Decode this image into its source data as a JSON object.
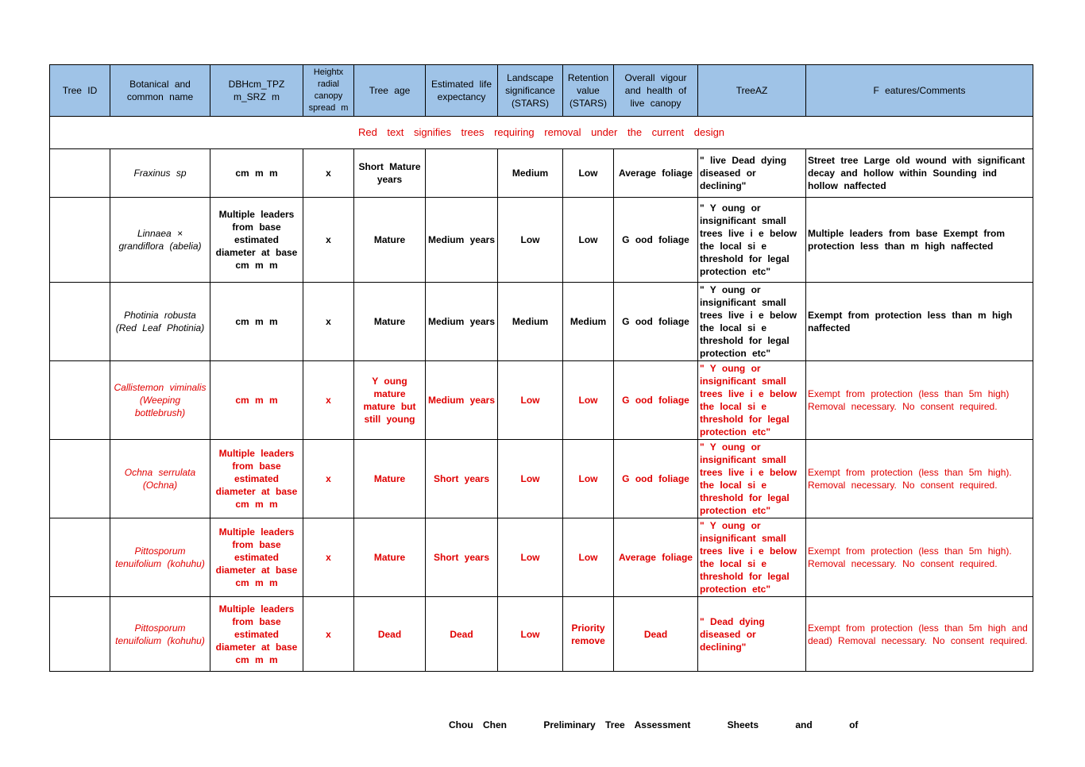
{
  "headers": {
    "id": "Tree ID",
    "botanical": "Botanical and common name",
    "dbh": "DBHcm_TPZ m_SRZ m",
    "height": "Heightx radial canopy spread m",
    "age": "Tree age",
    "life": "Estimated life expectancy",
    "landscape": "Landscape significance (STARS)",
    "retention": "Retention value (STARS)",
    "vigour": "Overall vigour and health of live canopy",
    "treeaz": "TreeAZ",
    "features": "F eatures/Comments"
  },
  "banner": "Red text signifies trees requiring removal under the current design",
  "rows": [
    {
      "id": "",
      "name": "Fraxinus sp",
      "dbh": "cm m m",
      "height": "x",
      "age": "Short Mature years",
      "life": "",
      "landscape": "Medium",
      "retention": "Low",
      "vigour": "Average foliage",
      "treeaz": "\" live Dead dying diseased or declining\"",
      "features": "Street tree Large old wound with significant decay and hollow within Sounding ind hollow naffected"
    },
    {
      "id": "",
      "name": "Linnaea × grandiflora (abelia)",
      "dbh": "Multiple leaders from base estimated diameter at base cm m m",
      "height": "x",
      "age": "Mature",
      "life": "Medium years",
      "landscape": "Low",
      "retention": "Low",
      "vigour": "G ood foliage",
      "treeaz": "\" Y oung or insignificant small trees live i e below the local si e threshold for legal protection etc\"",
      "features": "Multiple leaders from base Exempt from protection less than m high naffected"
    },
    {
      "id": "",
      "name": "Photinia robusta (Red Leaf Photinia)",
      "dbh": "cm m m",
      "height": "x",
      "age": "Mature",
      "life": "Medium years",
      "landscape": "Medium",
      "retention": "Medium",
      "vigour": "G ood foliage",
      "treeaz": "\" Y oung or insignificant small trees live i e below the local si e threshold for legal protection etc\"",
      "features": "Exempt from protection less than m high naffected"
    },
    {
      "id": "",
      "name": "Callistemon viminalis (Weeping bottlebrush)",
      "dbh": "cm m m",
      "height": "x",
      "age": "Y oung mature mature but still young",
      "life": "Medium years",
      "landscape": "Low",
      "retention": "Low",
      "vigour": "G ood foliage",
      "treeaz": "\" Y oung or insignificant small trees live i e below the local si e threshold for legal protection etc\"",
      "features": "Exempt from protection (less than 5m high) Removal necessary. No consent required."
    },
    {
      "id": "",
      "name": "Ochna serrulata (Ochna)",
      "dbh": "Multiple leaders from base estimated diameter at base cm m m",
      "height": "x",
      "age": "Mature",
      "life": "Short years",
      "landscape": "Low",
      "retention": "Low",
      "vigour": "G ood foliage",
      "treeaz": "\" Y oung or insignificant small trees live i e below the local si e threshold for legal protection etc\"",
      "features": "Exempt from protection (less than 5m high). Removal necessary. No consent required."
    },
    {
      "id": "",
      "name": "Pittosporum tenuifolium (kohuhu)",
      "dbh": "Multiple leaders from base estimated diameter at base cm m m",
      "height": "x",
      "age": "Mature",
      "life": "Short years",
      "landscape": "Low",
      "retention": "Low",
      "vigour": "Average foliage",
      "treeaz": "\" Y oung or insignificant small trees live i e below the local si e threshold for legal protection etc\"",
      "features": "Exempt from protection (less than 5m high). Removal necessary. No consent required."
    },
    {
      "id": "",
      "name": "Pittosporum tenuifolium (kohuhu)",
      "dbh": "Multiple leaders from base estimated diameter at base cm m m",
      "height": "x",
      "age": "Dead",
      "life": "Dead",
      "landscape": "Low",
      "retention": "Priority remove",
      "vigour": "Dead",
      "treeaz": "\" Dead dying diseased or declining\"",
      "features": "Exempt from protection (less than 5m high and dead) Removal necessary. No consent required."
    }
  ],
  "footer": {
    "author": "Chou Chen",
    "title": "Preliminary Tree Assessment",
    "sheets": "Sheets",
    "and": "and",
    "of": "of"
  },
  "colors": {
    "header_bg": "#9fc3e7",
    "removal_text": "#e00000"
  }
}
